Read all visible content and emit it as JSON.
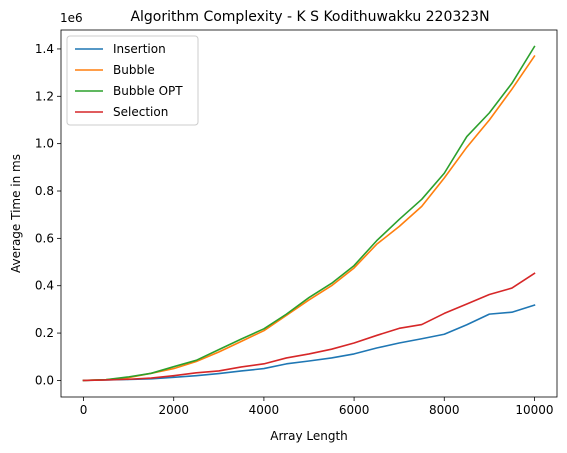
{
  "chart_data": {
    "type": "line",
    "title": "Algorithm Complexity - K S Kodithuwakku 220323N",
    "xlabel": "Array Length",
    "ylabel": "Average Time in ms",
    "y_offset_label": "1e6",
    "xlim": [
      -500,
      10500
    ],
    "ylim": [
      -70000,
      1480000
    ],
    "xticks": [
      0,
      2000,
      4000,
      6000,
      8000,
      10000
    ],
    "xtick_labels": [
      "0",
      "2000",
      "4000",
      "6000",
      "8000",
      "10000"
    ],
    "yticks": [
      0,
      200000,
      400000,
      600000,
      800000,
      1000000,
      1200000,
      1400000
    ],
    "ytick_labels": [
      "0.0",
      "0.2",
      "0.4",
      "0.6",
      "0.8",
      "1.0",
      "1.2",
      "1.4"
    ],
    "grid": false,
    "legend_position": "top-left",
    "x": [
      0,
      500,
      1000,
      1500,
      2000,
      2500,
      3000,
      3500,
      4000,
      4500,
      5000,
      5500,
      6000,
      6500,
      7000,
      7500,
      8000,
      8500,
      9000,
      9500,
      10000
    ],
    "series": [
      {
        "name": "Insertion",
        "color": "#1f77b4",
        "values": [
          0,
          2000,
          4000,
          7000,
          13000,
          20000,
          29000,
          40000,
          50000,
          70000,
          82000,
          95000,
          112000,
          137000,
          158000,
          176000,
          195000,
          235000,
          280000,
          288000,
          318000
        ]
      },
      {
        "name": "Bubble",
        "color": "#ff7f0e",
        "values": [
          0,
          3000,
          12000,
          30000,
          50000,
          80000,
          120000,
          165000,
          210000,
          275000,
          340000,
          400000,
          475000,
          575000,
          650000,
          735000,
          855000,
          985000,
          1100000,
          1230000,
          1370000
        ]
      },
      {
        "name": "Bubble OPT",
        "color": "#2ca02c",
        "values": [
          0,
          3000,
          15000,
          30000,
          58000,
          85000,
          130000,
          175000,
          218000,
          280000,
          350000,
          410000,
          485000,
          590000,
          680000,
          765000,
          875000,
          1030000,
          1130000,
          1255000,
          1410000
        ]
      },
      {
        "name": "Selection",
        "color": "#d62728",
        "values": [
          0,
          2000,
          5000,
          10000,
          20000,
          32000,
          40000,
          57000,
          70000,
          95000,
          112000,
          132000,
          158000,
          190000,
          220000,
          236000,
          283000,
          323000,
          363000,
          390000,
          452000
        ]
      }
    ]
  }
}
